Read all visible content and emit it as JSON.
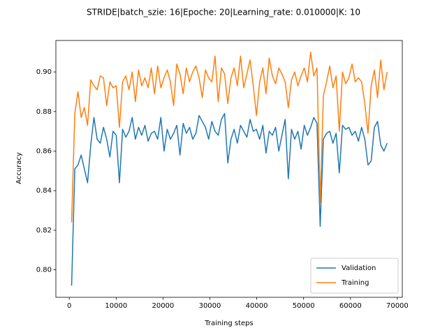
{
  "chart_data": {
    "type": "line",
    "title": "STRIDE|batch_szie: 16|Epoche: 20|Learning_rate: 0.010000|K: 10",
    "x_label": "Training steps",
    "y_label": "Accuracy",
    "x": [
      500,
      1180,
      1860,
      2540,
      3220,
      3900,
      4580,
      5260,
      5940,
      6620,
      7300,
      7980,
      8660,
      9340,
      10020,
      10700,
      11380,
      12060,
      12740,
      13420,
      14100,
      14780,
      15460,
      16140,
      16820,
      17500,
      18180,
      18860,
      19540,
      20220,
      20900,
      21580,
      22260,
      22940,
      23620,
      24300,
      24980,
      25660,
      26340,
      27020,
      27700,
      28380,
      29060,
      29740,
      30420,
      31100,
      31780,
      32460,
      33140,
      33820,
      34500,
      35180,
      35860,
      36540,
      37220,
      37900,
      38580,
      39260,
      39940,
      40620,
      41300,
      41980,
      42660,
      43340,
      44020,
      44700,
      45380,
      46060,
      46740,
      47420,
      48100,
      48780,
      49460,
      50140,
      50820,
      51500,
      52180,
      52860,
      53540,
      54220,
      54900,
      55580,
      56260,
      56940,
      57620,
      58300,
      58980,
      59660,
      60340,
      61020,
      61700,
      62380,
      63060,
      63740,
      64420,
      65100,
      65780,
      66460,
      67140,
      67820
    ],
    "series": [
      {
        "name": "Validation",
        "color": "#1f77b4",
        "values": [
          0.792,
          0.851,
          0.853,
          0.858,
          0.851,
          0.844,
          0.863,
          0.877,
          0.866,
          0.864,
          0.872,
          0.866,
          0.857,
          0.87,
          0.868,
          0.844,
          0.871,
          0.867,
          0.87,
          0.877,
          0.866,
          0.872,
          0.868,
          0.873,
          0.865,
          0.869,
          0.87,
          0.866,
          0.877,
          0.86,
          0.871,
          0.866,
          0.869,
          0.873,
          0.858,
          0.874,
          0.869,
          0.872,
          0.866,
          0.869,
          0.878,
          0.875,
          0.872,
          0.866,
          0.875,
          0.87,
          0.868,
          0.876,
          0.879,
          0.854,
          0.866,
          0.871,
          0.864,
          0.873,
          0.87,
          0.867,
          0.876,
          0.87,
          0.871,
          0.866,
          0.873,
          0.859,
          0.87,
          0.868,
          0.872,
          0.86,
          0.868,
          0.876,
          0.846,
          0.871,
          0.866,
          0.87,
          0.861,
          0.873,
          0.868,
          0.872,
          0.877,
          0.874,
          0.822,
          0.866,
          0.869,
          0.87,
          0.864,
          0.869,
          0.849,
          0.873,
          0.871,
          0.872,
          0.868,
          0.87,
          0.865,
          0.872,
          0.866,
          0.853,
          0.855,
          0.872,
          0.875,
          0.863,
          0.86,
          0.864
        ]
      },
      {
        "name": "Training",
        "color": "#ff7f0e",
        "values": [
          0.824,
          0.879,
          0.89,
          0.877,
          0.882,
          0.873,
          0.896,
          0.893,
          0.891,
          0.898,
          0.897,
          0.883,
          0.895,
          0.892,
          0.893,
          0.872,
          0.895,
          0.898,
          0.891,
          0.9,
          0.885,
          0.901,
          0.893,
          0.897,
          0.892,
          0.902,
          0.889,
          0.903,
          0.892,
          0.897,
          0.901,
          0.895,
          0.883,
          0.904,
          0.899,
          0.889,
          0.902,
          0.895,
          0.9,
          0.903,
          0.897,
          0.887,
          0.901,
          0.897,
          0.895,
          0.908,
          0.885,
          0.902,
          0.899,
          0.884,
          0.897,
          0.902,
          0.893,
          0.908,
          0.892,
          0.899,
          0.906,
          0.893,
          0.878,
          0.895,
          0.902,
          0.889,
          0.907,
          0.898,
          0.894,
          0.902,
          0.899,
          0.895,
          0.882,
          0.896,
          0.9,
          0.893,
          0.898,
          0.902,
          0.895,
          0.91,
          0.898,
          0.902,
          0.834,
          0.888,
          0.895,
          0.903,
          0.892,
          0.898,
          0.87,
          0.9,
          0.894,
          0.897,
          0.904,
          0.895,
          0.897,
          0.895,
          0.884,
          0.869,
          0.893,
          0.901,
          0.887,
          0.906,
          0.891,
          0.9
        ]
      }
    ],
    "xlim": [
      -2860,
      71060
    ],
    "ylim": [
      0.7861,
      0.9159
    ],
    "xticks": [
      0,
      10000,
      20000,
      30000,
      40000,
      50000,
      60000,
      70000
    ],
    "yticks": [
      {
        "value": 0.8,
        "label": "0.80"
      },
      0.82,
      0.84,
      0.86,
      0.88,
      {
        "value": 0.9,
        "label": "0.90"
      }
    ],
    "legend": "lower right",
    "grid": false
  }
}
